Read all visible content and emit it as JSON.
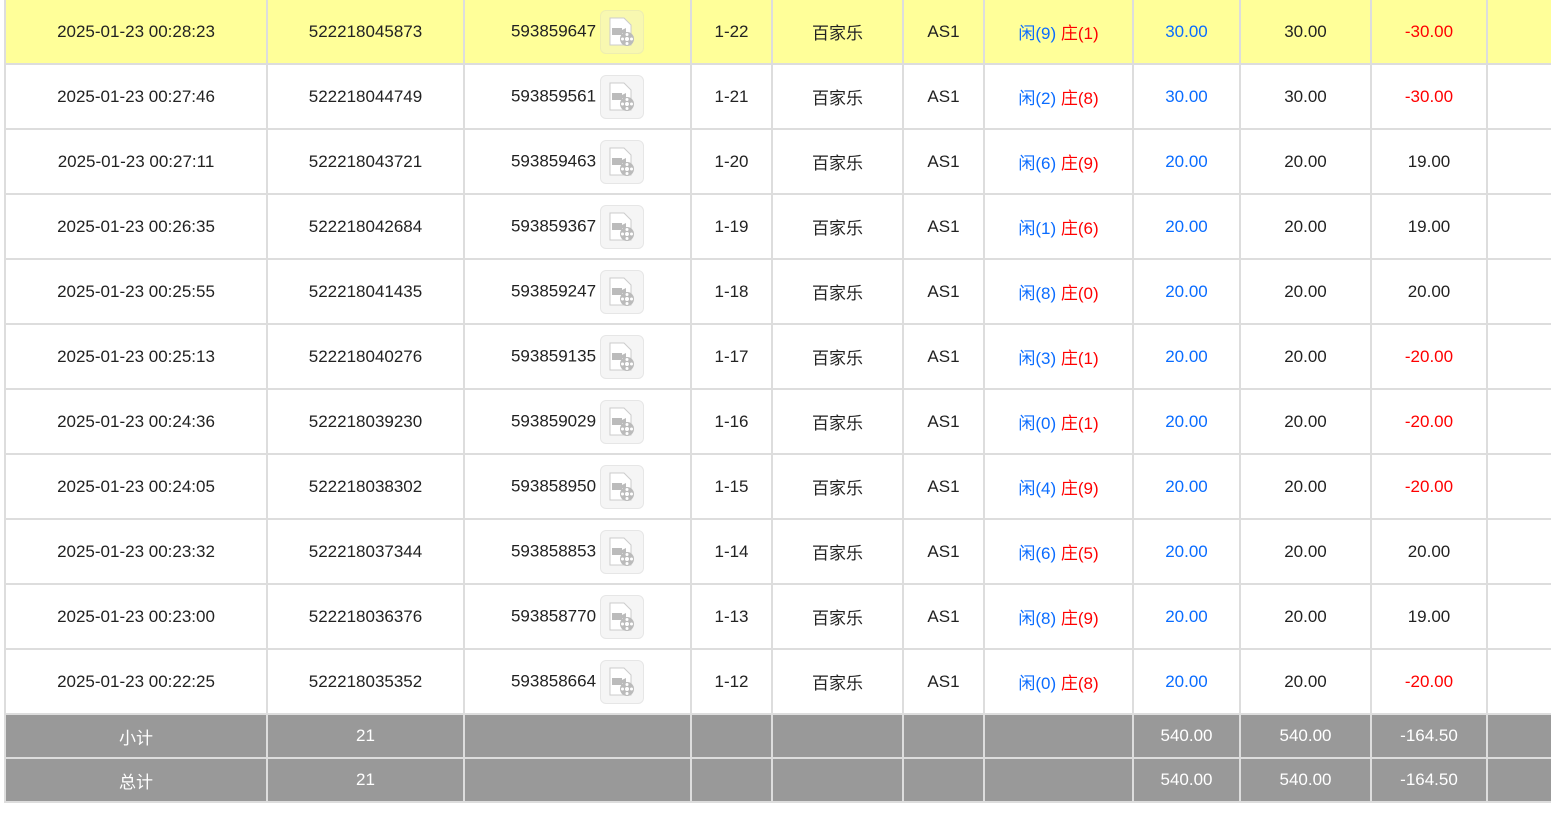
{
  "colors": {
    "highlight": "#ffff99",
    "blue": "#0a6cff",
    "red": "#ff0000",
    "footer": "#999999"
  },
  "rows": [
    {
      "time": "2025-01-23 00:28:23",
      "order": "522218045873",
      "game": "593859647",
      "round": "1-22",
      "type": "百家乐",
      "table": "AS1",
      "p": "闲(9)",
      "b": "庄(1)",
      "bet": "30.00",
      "valid": "30.00",
      "win": "-30.00",
      "neg": true
    },
    {
      "time": "2025-01-23 00:27:46",
      "order": "522218044749",
      "game": "593859561",
      "round": "1-21",
      "type": "百家乐",
      "table": "AS1",
      "p": "闲(2)",
      "b": "庄(8)",
      "bet": "30.00",
      "valid": "30.00",
      "win": "-30.00",
      "neg": true
    },
    {
      "time": "2025-01-23 00:27:11",
      "order": "522218043721",
      "game": "593859463",
      "round": "1-20",
      "type": "百家乐",
      "table": "AS1",
      "p": "闲(6)",
      "b": "庄(9)",
      "bet": "20.00",
      "valid": "20.00",
      "win": "19.00",
      "neg": false
    },
    {
      "time": "2025-01-23 00:26:35",
      "order": "522218042684",
      "game": "593859367",
      "round": "1-19",
      "type": "百家乐",
      "table": "AS1",
      "p": "闲(1)",
      "b": "庄(6)",
      "bet": "20.00",
      "valid": "20.00",
      "win": "19.00",
      "neg": false
    },
    {
      "time": "2025-01-23 00:25:55",
      "order": "522218041435",
      "game": "593859247",
      "round": "1-18",
      "type": "百家乐",
      "table": "AS1",
      "p": "闲(8)",
      "b": "庄(0)",
      "bet": "20.00",
      "valid": "20.00",
      "win": "20.00",
      "neg": false
    },
    {
      "time": "2025-01-23 00:25:13",
      "order": "522218040276",
      "game": "593859135",
      "round": "1-17",
      "type": "百家乐",
      "table": "AS1",
      "p": "闲(3)",
      "b": "庄(1)",
      "bet": "20.00",
      "valid": "20.00",
      "win": "-20.00",
      "neg": true
    },
    {
      "time": "2025-01-23 00:24:36",
      "order": "522218039230",
      "game": "593859029",
      "round": "1-16",
      "type": "百家乐",
      "table": "AS1",
      "p": "闲(0)",
      "b": "庄(1)",
      "bet": "20.00",
      "valid": "20.00",
      "win": "-20.00",
      "neg": true
    },
    {
      "time": "2025-01-23 00:24:05",
      "order": "522218038302",
      "game": "593858950",
      "round": "1-15",
      "type": "百家乐",
      "table": "AS1",
      "p": "闲(4)",
      "b": "庄(9)",
      "bet": "20.00",
      "valid": "20.00",
      "win": "-20.00",
      "neg": true
    },
    {
      "time": "2025-01-23 00:23:32",
      "order": "522218037344",
      "game": "593858853",
      "round": "1-14",
      "type": "百家乐",
      "table": "AS1",
      "p": "闲(6)",
      "b": "庄(5)",
      "bet": "20.00",
      "valid": "20.00",
      "win": "20.00",
      "neg": false
    },
    {
      "time": "2025-01-23 00:23:00",
      "order": "522218036376",
      "game": "593858770",
      "round": "1-13",
      "type": "百家乐",
      "table": "AS1",
      "p": "闲(8)",
      "b": "庄(9)",
      "bet": "20.00",
      "valid": "20.00",
      "win": "19.00",
      "neg": false
    },
    {
      "time": "2025-01-23 00:22:25",
      "order": "522218035352",
      "game": "593858664",
      "round": "1-12",
      "type": "百家乐",
      "table": "AS1",
      "p": "闲(0)",
      "b": "庄(8)",
      "bet": "20.00",
      "valid": "20.00",
      "win": "-20.00",
      "neg": true
    }
  ],
  "footer": [
    {
      "label": "小计",
      "count": "21",
      "bet": "540.00",
      "valid": "540.00",
      "win": "-164.50"
    },
    {
      "label": "总计",
      "count": "21",
      "bet": "540.00",
      "valid": "540.00",
      "win": "-164.50"
    }
  ]
}
